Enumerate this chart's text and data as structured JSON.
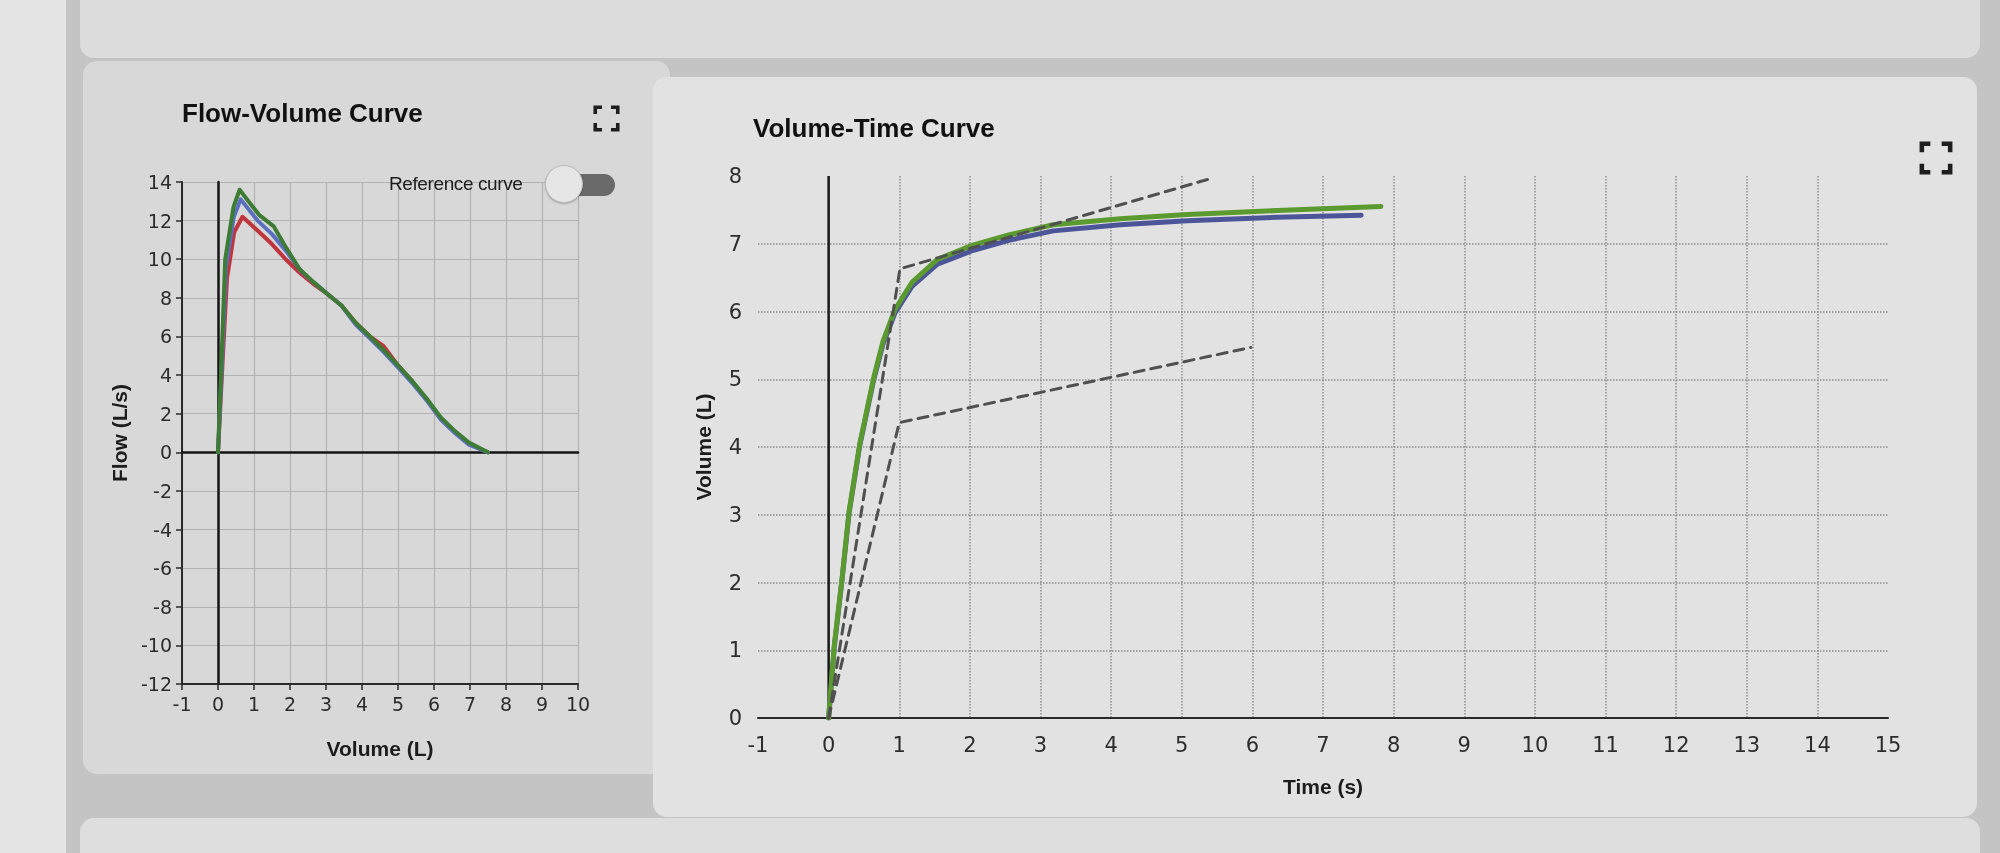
{
  "chart_data": [
    {
      "type": "line",
      "title": "Flow-Volume Curve",
      "xlabel": "Volume (L)",
      "ylabel": "Flow (L/s)",
      "annotations": [
        "Reference curve"
      ],
      "xlim": [
        -1,
        10
      ],
      "xticks": [
        -1,
        0,
        1,
        2,
        3,
        4,
        5,
        6,
        7,
        8,
        9,
        10
      ],
      "ylim": [
        -12,
        14
      ],
      "yticks": [
        -12,
        -10,
        -8,
        -6,
        -4,
        -2,
        0,
        2,
        4,
        6,
        8,
        10,
        12,
        14
      ],
      "grid": true,
      "marker": "none",
      "line_style": "solid",
      "series": [
        {
          "color": "#c0353d",
          "x": [
            0,
            0.12,
            0.25,
            0.45,
            0.68,
            1.09,
            1.49,
            1.88,
            2.27,
            2.66,
            3.04,
            3.43,
            3.83,
            4.22,
            4.6,
            5.0,
            5.39
          ],
          "values": [
            0,
            4.4,
            9.0,
            11.4,
            12.2,
            11.5,
            10.8,
            10.0,
            9.3,
            8.7,
            8.2,
            7.6,
            6.7,
            6.0,
            5.5,
            4.5,
            3.7
          ]
        },
        {
          "color": "#5a6fc0",
          "x": [
            0,
            0.11,
            0.22,
            0.44,
            0.63,
            1.1,
            1.5,
            1.9,
            2.3,
            2.66,
            3.04,
            3.43,
            3.83,
            4.22,
            4.6,
            5.0,
            5.39,
            5.79,
            6.19,
            6.58,
            6.97,
            7.5
          ],
          "values": [
            0,
            4.6,
            9.6,
            12.2,
            13.1,
            12.0,
            11.3,
            10.4,
            9.4,
            8.8,
            8.2,
            7.6,
            6.6,
            5.9,
            5.2,
            4.4,
            3.6,
            2.7,
            1.7,
            1.0,
            0.4,
            0
          ]
        },
        {
          "color": "#3e7b35",
          "x": [
            0,
            0.1,
            0.2,
            0.43,
            0.6,
            1.14,
            1.55,
            1.86,
            2.26,
            2.66,
            3.04,
            3.43,
            3.83,
            4.22,
            4.6,
            5.0,
            5.39,
            5.79,
            6.19,
            6.58,
            6.97,
            7.5
          ],
          "values": [
            0,
            4.8,
            10.0,
            12.7,
            13.6,
            12.3,
            11.7,
            10.7,
            9.5,
            8.8,
            8.2,
            7.6,
            6.7,
            6.0,
            5.3,
            4.5,
            3.7,
            2.8,
            1.8,
            1.1,
            0.5,
            0
          ]
        }
      ]
    },
    {
      "type": "line",
      "title": "Volume-Time Curve",
      "xlabel": "Time (s)",
      "ylabel": "Volume (L)",
      "xlim": [
        -1,
        15
      ],
      "xticks": [
        -1,
        0,
        1,
        2,
        3,
        4,
        5,
        6,
        7,
        8,
        9,
        10,
        11,
        12,
        13,
        14,
        15
      ],
      "ylim": [
        0,
        8
      ],
      "yticks": [
        0,
        1,
        2,
        3,
        4,
        5,
        6,
        7,
        8
      ],
      "grid": true,
      "marker": "none",
      "line_style": "solid",
      "ref_lines": [
        {
          "axis": "x",
          "value": 0,
          "color": "#1a1a1a"
        }
      ],
      "series": [
        {
          "color": "#4d5599",
          "x": [
            0,
            0.08,
            0.19,
            0.29,
            0.44,
            0.64,
            0.77,
            0.94,
            1.18,
            1.54,
            2.04,
            2.55,
            3.18,
            4.13,
            5.08,
            6.35,
            7.54
          ],
          "values": [
            0,
            1.05,
            2.04,
            3.03,
            4.02,
            5.0,
            5.52,
            5.98,
            6.37,
            6.7,
            6.9,
            7.05,
            7.19,
            7.28,
            7.34,
            7.39,
            7.42
          ]
        },
        {
          "color": "#5b9a2f",
          "x": [
            0,
            0.08,
            0.19,
            0.29,
            0.44,
            0.64,
            0.77,
            0.94,
            1.18,
            1.54,
            2.04,
            2.55,
            3.18,
            4.13,
            5.08,
            6.35,
            7.82
          ],
          "values": [
            0,
            1.07,
            2.06,
            3.05,
            4.04,
            5.03,
            5.56,
            6.03,
            6.43,
            6.77,
            6.98,
            7.13,
            7.28,
            7.37,
            7.43,
            7.49,
            7.55
          ]
        },
        {
          "color": "#505050",
          "line_style": "dashed",
          "x": [
            0,
            1.01,
            5.37
          ],
          "values": [
            0,
            6.63,
            7.95
          ]
        },
        {
          "color": "#505050",
          "line_style": "dashed",
          "x": [
            0,
            1.0,
            5.98
          ],
          "values": [
            0,
            4.36,
            5.47
          ]
        }
      ]
    }
  ]
}
